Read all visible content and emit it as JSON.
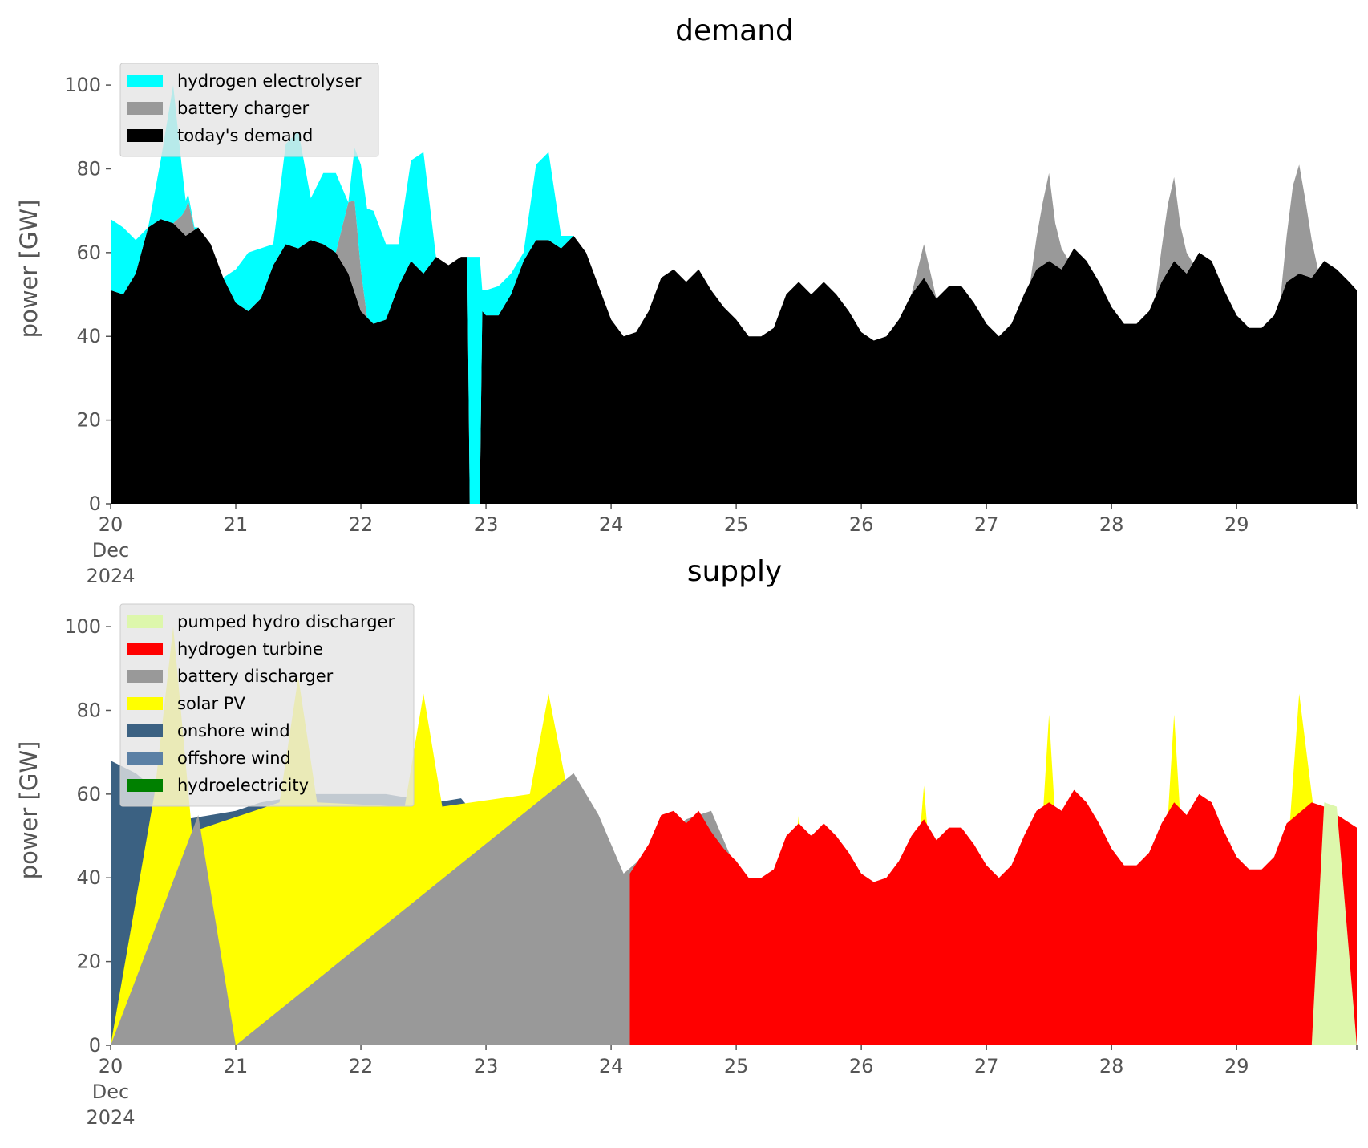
{
  "chart_data": [
    {
      "type": "area",
      "title": "demand",
      "xlabel": "",
      "ylabel": "power [GW]",
      "xlim": [
        20.0,
        29.96
      ],
      "ylim": [
        0,
        105
      ],
      "x_ticks": [
        {
          "value": 20,
          "label": "20",
          "sublabel": [
            "Dec",
            "2024"
          ]
        },
        {
          "value": 21,
          "label": "21"
        },
        {
          "value": 22,
          "label": "22"
        },
        {
          "value": 23,
          "label": "23"
        },
        {
          "value": 24,
          "label": "24"
        },
        {
          "value": 25,
          "label": "25"
        },
        {
          "value": 26,
          "label": "26"
        },
        {
          "value": 27,
          "label": "27"
        },
        {
          "value": 28,
          "label": "28"
        },
        {
          "value": 29,
          "label": "29"
        }
      ],
      "y_ticks": [
        0,
        20,
        40,
        60,
        80,
        100
      ],
      "legend_position": "top-left",
      "legend": [
        "hydrogen electrolyser",
        "battery charger",
        "today's demand"
      ],
      "series": [
        {
          "name": "today's demand",
          "color": "#000000",
          "mode": "absolute",
          "x": [
            20.0,
            20.1,
            20.2,
            20.3,
            20.4,
            20.5,
            20.6,
            20.7,
            20.8,
            20.9,
            21.0,
            21.1,
            21.2,
            21.3,
            21.4,
            21.5,
            21.6,
            21.7,
            21.8,
            21.9,
            22.0,
            22.1,
            22.2,
            22.3,
            22.4,
            22.5,
            22.6,
            22.7,
            22.8,
            22.85,
            22.87,
            22.95,
            22.97,
            23.0,
            23.1,
            23.2,
            23.3,
            23.4,
            23.5,
            23.6,
            23.7,
            23.8,
            23.9,
            24.0,
            24.1,
            24.2,
            24.3,
            24.4,
            24.5,
            24.6,
            24.7,
            24.8,
            24.9,
            25.0,
            25.1,
            25.2,
            25.3,
            25.4,
            25.5,
            25.6,
            25.7,
            25.8,
            25.9,
            26.0,
            26.1,
            26.2,
            26.3,
            26.4,
            26.5,
            26.6,
            26.7,
            26.8,
            26.9,
            27.0,
            27.1,
            27.2,
            27.3,
            27.4,
            27.5,
            27.6,
            27.7,
            27.8,
            27.9,
            28.0,
            28.1,
            28.2,
            28.3,
            28.4,
            28.5,
            28.6,
            28.7,
            28.8,
            28.9,
            29.0,
            29.1,
            29.2,
            29.3,
            29.4,
            29.5,
            29.6,
            29.7,
            29.8,
            29.9,
            29.96
          ],
          "values": [
            51,
            50,
            55,
            66,
            68,
            67,
            64,
            66,
            62,
            54,
            48,
            46,
            49,
            57,
            62,
            61,
            63,
            62,
            60,
            55,
            46,
            43,
            44,
            52,
            58,
            55,
            59,
            57,
            59,
            59,
            0,
            0,
            46,
            45,
            45,
            50,
            58,
            63,
            63,
            61,
            64,
            60,
            52,
            44,
            40,
            41,
            46,
            54,
            56,
            53,
            56,
            51,
            47,
            44,
            40,
            40,
            42,
            50,
            53,
            50,
            53,
            50,
            46,
            41,
            39,
            40,
            44,
            50,
            54,
            49,
            52,
            52,
            48,
            43,
            40,
            43,
            50,
            56,
            58,
            56,
            61,
            58,
            53,
            47,
            43,
            43,
            46,
            53,
            58,
            55,
            60,
            58,
            51,
            45,
            42,
            42,
            45,
            53,
            55,
            54,
            58,
            56,
            53,
            51
          ]
        },
        {
          "name": "battery charger",
          "color": "#999999",
          "mode": "stack",
          "x": [
            20.0,
            20.5,
            20.57,
            20.62,
            20.67,
            21.0,
            21.8,
            21.9,
            21.95,
            22.0,
            22.05,
            22.1,
            22.2,
            26.4,
            26.5,
            26.6,
            27.35,
            27.45,
            27.5,
            27.55,
            27.65,
            28.35,
            28.45,
            28.5,
            28.55,
            28.65,
            29.35,
            29.45,
            29.5,
            29.55,
            29.65,
            29.96
          ],
          "values": [
            0,
            0,
            4,
            8,
            0,
            0,
            0,
            17,
            22,
            10,
            0,
            0,
            0,
            0,
            8,
            0,
            0,
            15,
            21,
            10,
            0,
            0,
            16,
            20,
            10,
            0,
            0,
            22,
            26,
            18,
            0,
            0
          ]
        },
        {
          "name": "hydrogen electrolyser",
          "color": "#00ffff",
          "mode": "stack",
          "x": [
            20.0,
            20.1,
            20.2,
            20.3,
            20.4,
            20.5,
            20.6,
            20.7,
            20.8,
            20.9,
            21.0,
            21.1,
            21.2,
            21.3,
            21.4,
            21.5,
            21.6,
            21.7,
            21.8,
            21.9,
            22.0,
            22.1,
            22.2,
            22.3,
            22.4,
            22.5,
            22.6,
            22.7,
            22.8,
            22.85,
            22.87,
            22.95,
            22.97,
            23.0,
            23.1,
            23.2,
            23.3,
            23.4,
            23.5,
            23.6,
            23.7,
            23.8
          ],
          "values": [
            17,
            16,
            8,
            0,
            14,
            33,
            2,
            0,
            0,
            0,
            8,
            14,
            12,
            5,
            24,
            28,
            10,
            17,
            19,
            0,
            25,
            27,
            18,
            10,
            24,
            29,
            0,
            0,
            0,
            0,
            59,
            59,
            5,
            6,
            7,
            5,
            2,
            18,
            21,
            3,
            0,
            0
          ]
        }
      ]
    },
    {
      "type": "area",
      "title": "supply",
      "xlabel": "",
      "ylabel": "power [GW]",
      "xlim": [
        20.0,
        29.96
      ],
      "ylim": [
        0,
        105
      ],
      "x_ticks": [
        {
          "value": 20,
          "label": "20",
          "sublabel": [
            "Dec",
            "2024"
          ]
        },
        {
          "value": 21,
          "label": "21"
        },
        {
          "value": 22,
          "label": "22"
        },
        {
          "value": 23,
          "label": "23"
        },
        {
          "value": 24,
          "label": "24"
        },
        {
          "value": 25,
          "label": "25"
        },
        {
          "value": 26,
          "label": "26"
        },
        {
          "value": 27,
          "label": "27"
        },
        {
          "value": 28,
          "label": "28"
        },
        {
          "value": 29,
          "label": "29"
        }
      ],
      "y_ticks": [
        0,
        20,
        40,
        60,
        80,
        100
      ],
      "legend_position": "top-left",
      "legend": [
        "pumped hydro discharger",
        "hydrogen turbine",
        "battery discharger",
        "solar PV",
        "onshore wind",
        "offshore wind",
        "hydroelectricity"
      ],
      "series": [
        {
          "name": "hydroelectricity",
          "color": "#008000",
          "mode": "absolute",
          "x": [
            20.0,
            21.0,
            22.0,
            23.0,
            24.0,
            25.0,
            26.0,
            27.0,
            28.0,
            29.0,
            29.96
          ],
          "values": [
            1.2,
            1.2,
            1.2,
            1.4,
            1.2,
            1.2,
            1.2,
            1.1,
            1.1,
            1.1,
            1.1
          ]
        },
        {
          "name": "offshore wind",
          "color": "#5b80a5",
          "mode": "absolute",
          "x": [
            20.0,
            20.2,
            20.4,
            20.6,
            20.8,
            21.0,
            21.2,
            21.4,
            21.6,
            21.8,
            22.0,
            22.2,
            22.4,
            22.6,
            22.8,
            23.0,
            23.2,
            23.4,
            23.6,
            23.8,
            24.0,
            24.2,
            24.4,
            24.6,
            24.8,
            25.0,
            25.2,
            25.4,
            25.6,
            25.8,
            26.0,
            26.2,
            26.4,
            26.6,
            26.8,
            27.0,
            27.2,
            27.4,
            27.6,
            27.8,
            28.0,
            28.2,
            28.4,
            28.6,
            28.8,
            29.0,
            29.2,
            29.4,
            29.6,
            29.8,
            29.96
          ],
          "values": [
            10,
            10,
            12,
            13,
            13,
            13,
            12,
            13,
            12,
            12,
            12,
            12,
            12,
            12,
            12,
            11,
            9,
            9,
            10,
            10,
            4,
            4,
            8,
            9,
            7,
            6,
            6,
            6,
            7,
            6,
            5,
            4,
            4,
            3,
            3,
            3,
            3,
            2,
            2,
            2,
            2,
            2,
            2,
            2,
            3,
            4,
            6,
            9,
            12,
            12,
            12
          ]
        },
        {
          "name": "onshore wind",
          "color": "#3b6182",
          "mode": "absolute",
          "x": [
            20.0,
            20.2,
            20.4,
            20.6,
            20.8,
            21.0,
            21.2,
            21.4,
            21.6,
            21.8,
            22.0,
            22.2,
            22.4,
            22.6,
            22.8,
            23.0,
            23.2,
            23.4,
            23.6,
            23.8,
            24.0,
            24.2,
            24.4,
            24.6,
            24.8,
            25.0,
            25.2,
            25.4,
            25.6,
            25.8,
            26.0,
            26.2,
            26.4,
            26.6,
            26.8,
            27.0,
            27.2,
            27.4,
            27.6,
            27.8,
            28.0,
            28.2,
            28.4,
            28.6,
            28.8,
            29.0,
            29.2,
            29.4,
            29.6,
            29.8,
            29.96
          ],
          "values": [
            68,
            65,
            60,
            54,
            55,
            56,
            58,
            59,
            60,
            60,
            60,
            60,
            59,
            58,
            59,
            52,
            53,
            59,
            60,
            55,
            38,
            19,
            20,
            22,
            21,
            20,
            17,
            13,
            11,
            12,
            12,
            8,
            7,
            7,
            7,
            6,
            4,
            3,
            3,
            2,
            2,
            3,
            3,
            4,
            6,
            10,
            18,
            25,
            33,
            43,
            47
          ]
        },
        {
          "name": "solar PV",
          "color": "#ffff00",
          "mode": "absolute",
          "x": [
            20.0,
            20.35,
            20.5,
            20.65,
            21.35,
            21.5,
            21.65,
            22.35,
            22.5,
            22.65,
            23.35,
            23.5,
            23.65,
            24.35,
            24.5,
            24.65,
            25.35,
            25.5,
            25.65,
            26.35,
            26.5,
            26.65,
            27.35,
            27.5,
            27.65,
            28.35,
            28.5,
            28.65,
            29.35,
            29.5,
            29.65,
            29.96
          ],
          "values": [
            0,
            60,
            100,
            51,
            58,
            88,
            58,
            57,
            84,
            57,
            60,
            84,
            61,
            22,
            45,
            22,
            14,
            55,
            12,
            8,
            62,
            6,
            5,
            79,
            4,
            5,
            79,
            5,
            22,
            84,
            48,
            0
          ]
        },
        {
          "name": "battery discharger",
          "color": "#999999",
          "mode": "absolute",
          "x": [
            20.0,
            20.7,
            21.0,
            23.7,
            23.9,
            24.1,
            24.6,
            24.8,
            25.0,
            26.8,
            26.95,
            27.0,
            27.05,
            27.8,
            27.95,
            28.0,
            28.05,
            28.8,
            28.9,
            28.95,
            29.0,
            29.6,
            29.8,
            29.96
          ],
          "values": [
            0,
            55,
            0,
            65,
            55,
            41,
            54,
            56,
            42,
            0,
            23,
            40,
            0,
            0,
            48,
            20,
            0,
            0,
            20,
            49,
            0,
            55,
            55,
            50
          ]
        },
        {
          "name": "hydrogen turbine",
          "color": "#ff0000",
          "mode": "absolute",
          "x": [
            24.15,
            24.3,
            24.4,
            24.5,
            24.6,
            24.7,
            24.8,
            24.9,
            25.0,
            25.1,
            25.2,
            25.3,
            25.4,
            25.5,
            25.6,
            25.7,
            25.8,
            25.9,
            26.0,
            26.1,
            26.2,
            26.3,
            26.4,
            26.5,
            26.6,
            26.7,
            26.8,
            26.9,
            27.0,
            27.1,
            27.2,
            27.3,
            27.4,
            27.5,
            27.6,
            27.7,
            27.8,
            27.9,
            28.0,
            28.1,
            28.2,
            28.3,
            28.4,
            28.5,
            28.6,
            28.7,
            28.8,
            28.9,
            29.0,
            29.1,
            29.2,
            29.3,
            29.4,
            29.6,
            29.7,
            29.96
          ],
          "values": [
            41,
            48,
            55,
            56,
            53,
            56,
            51,
            47,
            44,
            40,
            40,
            42,
            50,
            53,
            50,
            53,
            50,
            46,
            41,
            39,
            40,
            44,
            50,
            54,
            49,
            52,
            52,
            48,
            43,
            40,
            43,
            50,
            56,
            58,
            56,
            61,
            58,
            53,
            47,
            43,
            43,
            46,
            53,
            58,
            55,
            60,
            58,
            51,
            45,
            42,
            42,
            45,
            53,
            58,
            57,
            52
          ]
        },
        {
          "name": "pumped hydro discharger",
          "color": "#ddf7ac",
          "mode": "absolute",
          "x": [
            29.6,
            29.7,
            29.8,
            29.96
          ],
          "values": [
            0,
            58,
            57,
            0
          ]
        }
      ]
    }
  ]
}
